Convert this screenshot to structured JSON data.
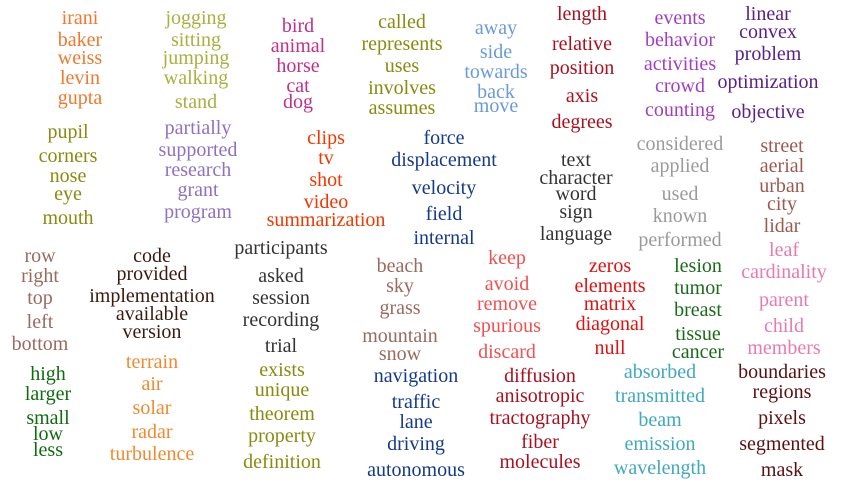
{
  "colors": {
    "orange": "#f07830",
    "khaki": "#a8b040",
    "magenta": "#c0308a",
    "olive": "#8a8a10",
    "skyblue": "#6a9ad8",
    "darkred": "#a81020",
    "purple": "#a040c0",
    "indigo": "#5a208a",
    "lavender": "#9070c0",
    "redorange": "#f03800",
    "navy": "#143a8a",
    "charcoal": "#333333",
    "gray": "#9a9a9a",
    "brown": "#9a5a50",
    "pink": "#e87ab0",
    "rosybrown": "#9a6a60",
    "darkbrown": "#3a1a10",
    "coral": "#f05050",
    "red": "#e01010",
    "darkgreen": "#1a6a1a",
    "teal": "#40a8c0",
    "maroon": "#5a1010",
    "greenish": "#106a10",
    "amber": "#f08a30"
  },
  "clusters": [
    {
      "color": "orange",
      "words": [
        "irani",
        "baker",
        "weiss",
        "levin",
        "gupta"
      ]
    },
    {
      "color": "khaki",
      "words": [
        "jogging",
        "sitting",
        "jumping",
        "walking",
        "stand"
      ]
    },
    {
      "color": "magenta",
      "words": [
        "bird",
        "animal",
        "horse",
        "cat",
        "dog"
      ]
    },
    {
      "color": "olive",
      "words": [
        "called",
        "represents",
        "uses",
        "involves",
        "assumes"
      ]
    },
    {
      "color": "skyblue",
      "words": [
        "away",
        "side",
        "towards",
        "back",
        "move"
      ]
    },
    {
      "color": "darkred",
      "words": [
        "length",
        "relative",
        "position",
        "axis",
        "degrees"
      ]
    },
    {
      "color": "purple",
      "words": [
        "events",
        "behavior",
        "activities",
        "crowd",
        "counting"
      ]
    },
    {
      "color": "indigo",
      "words": [
        "linear",
        "convex",
        "problem",
        "optimization",
        "objective"
      ]
    },
    {
      "color": "olive",
      "words": [
        "pupil",
        "corners",
        "nose",
        "eye",
        "mouth"
      ]
    },
    {
      "color": "lavender",
      "words": [
        "partially",
        "supported",
        "research",
        "grant",
        "program"
      ]
    },
    {
      "color": "redorange",
      "words": [
        "clips",
        "tv",
        "shot",
        "video",
        "summarization"
      ]
    },
    {
      "color": "navy",
      "words": [
        "force",
        "displacement",
        "velocity",
        "field",
        "internal"
      ]
    },
    {
      "color": "charcoal",
      "words": [
        "text",
        "character",
        "word",
        "sign",
        "language"
      ]
    },
    {
      "color": "gray",
      "words": [
        "considered",
        "applied",
        "used",
        "known",
        "performed"
      ]
    },
    {
      "color": "brown",
      "words": [
        "street",
        "aerial",
        "urban",
        "city",
        "lidar"
      ]
    },
    {
      "color": "pink",
      "words": [
        "leaf",
        "cardinality",
        "parent",
        "child",
        "members"
      ]
    },
    {
      "color": "rosybrown",
      "words": [
        "row",
        "right",
        "top",
        "left",
        "bottom"
      ]
    },
    {
      "color": "darkbrown",
      "words": [
        "code",
        "provided",
        "implementation",
        "available",
        "version"
      ]
    },
    {
      "color": "charcoal",
      "words": [
        "participants",
        "asked",
        "session",
        "recording",
        "trial"
      ]
    },
    {
      "color": "rosybrown",
      "words": [
        "beach",
        "sky",
        "grass",
        "mountain",
        "snow"
      ]
    },
    {
      "color": "coral",
      "words": [
        "keep",
        "avoid",
        "remove",
        "spurious",
        "discard"
      ]
    },
    {
      "color": "red",
      "words": [
        "zeros",
        "elements",
        "matrix",
        "diagonal",
        "null"
      ]
    },
    {
      "color": "darkgreen",
      "words": [
        "lesion",
        "tumor",
        "breast",
        "tissue",
        "cancer"
      ]
    },
    {
      "color": "greenish",
      "words": [
        "high",
        "larger",
        "small",
        "low",
        "less"
      ]
    },
    {
      "color": "amber",
      "words": [
        "terrain",
        "air",
        "solar",
        "radar",
        "turbulence"
      ]
    },
    {
      "color": "olive",
      "words": [
        "exists",
        "unique",
        "theorem",
        "property",
        "definition"
      ]
    },
    {
      "color": "navy",
      "words": [
        "navigation",
        "traffic",
        "lane",
        "driving",
        "autonomous"
      ]
    },
    {
      "color": "darkred",
      "words": [
        "diffusion",
        "anisotropic",
        "tractography",
        "fiber",
        "molecules"
      ]
    },
    {
      "color": "teal",
      "words": [
        "absorbed",
        "transmitted",
        "beam",
        "emission",
        "wavelength"
      ]
    },
    {
      "color": "maroon",
      "words": [
        "boundaries",
        "regions",
        "pixels",
        "segmented",
        "mask"
      ]
    }
  ]
}
